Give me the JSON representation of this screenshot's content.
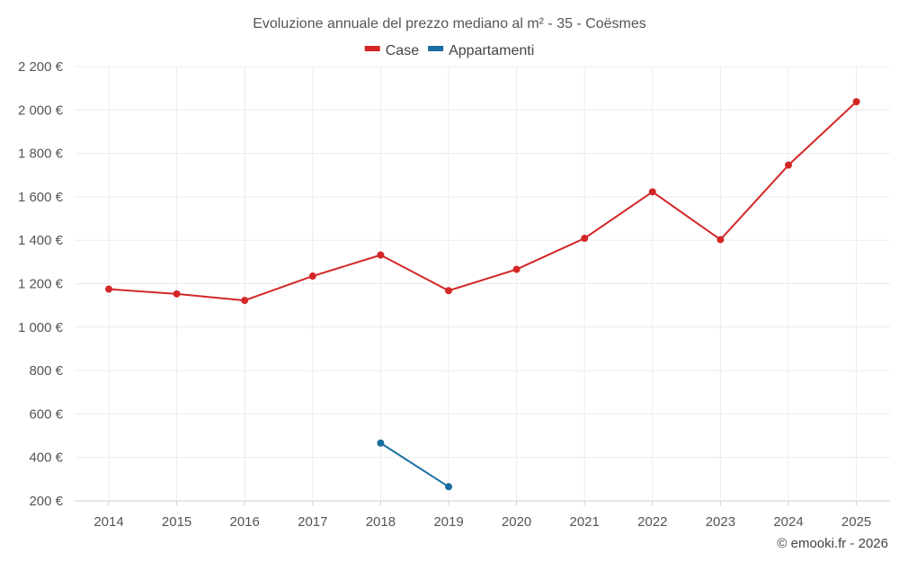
{
  "chart_data": {
    "type": "line",
    "title": "Evoluzione annuale del prezzo mediano al m² - 35 - Coësmes",
    "xlabel": "",
    "ylabel": "",
    "categories": [
      "2014",
      "2015",
      "2016",
      "2017",
      "2018",
      "2019",
      "2020",
      "2021",
      "2022",
      "2023",
      "2024",
      "2025"
    ],
    "ylim": [
      200,
      2200
    ],
    "yticks": [
      200,
      400,
      600,
      800,
      1000,
      1200,
      1400,
      1600,
      1800,
      2000,
      2200
    ],
    "ytick_labels": [
      "200 €",
      "400 €",
      "600 €",
      "800 €",
      "1 000 €",
      "1 200 €",
      "1 400 €",
      "1 600 €",
      "1 800 €",
      "2 000 €",
      "2 200 €"
    ],
    "legend_position": "top-center",
    "grid": true,
    "series": [
      {
        "name": "Case",
        "color": "#d32626",
        "values": [
          1175,
          1153,
          1123,
          1235,
          1332,
          1168,
          1266,
          1409,
          1623,
          1403,
          1746,
          2038
        ]
      },
      {
        "name": "Appartamenti",
        "color": "#1a6ea0",
        "values": [
          null,
          null,
          null,
          null,
          466,
          265,
          null,
          null,
          null,
          null,
          null,
          null
        ]
      }
    ]
  },
  "credit": "© emooki.fr - 2026"
}
